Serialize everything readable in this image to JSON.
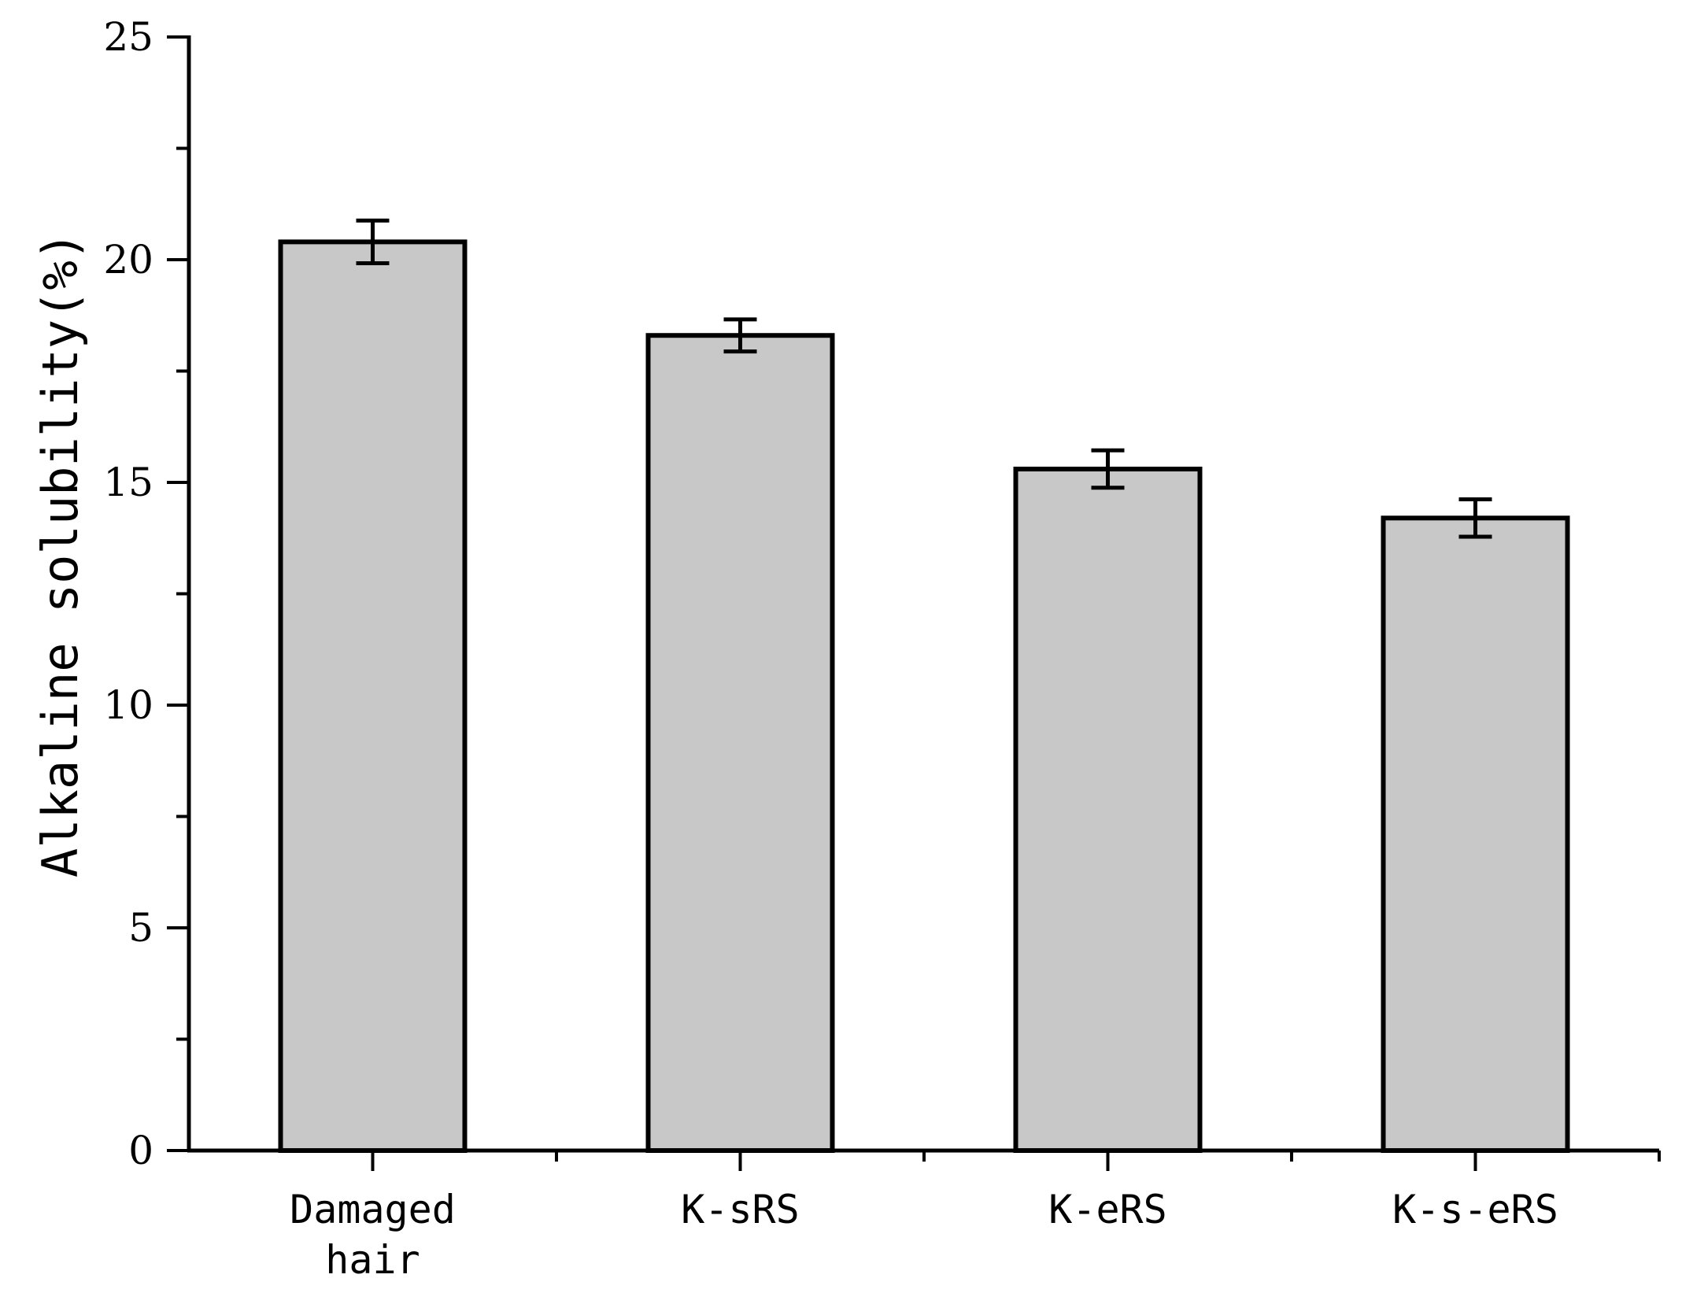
{
  "chart_data": {
    "type": "bar",
    "categories": [
      [
        "Damaged",
        "hair"
      ],
      [
        "K-sRS"
      ],
      [
        "K-eRS"
      ],
      [
        "K-s-eRS"
      ]
    ],
    "values": [
      20.4,
      18.3,
      15.3,
      14.2
    ],
    "errors": [
      0.48,
      0.36,
      0.42,
      0.42
    ],
    "title": "",
    "xlabel": "",
    "ylabel": "Alkaline solubility(%)",
    "ylim": [
      0,
      25
    ],
    "yticks": [
      0,
      5,
      10,
      15,
      20,
      25
    ],
    "ytick_labels": [
      "0",
      "5",
      "10",
      "15",
      "20",
      "25"
    ],
    "grid": false,
    "legend": "none",
    "bar_color": "#c8c8c8",
    "edge_color": "#000000"
  }
}
